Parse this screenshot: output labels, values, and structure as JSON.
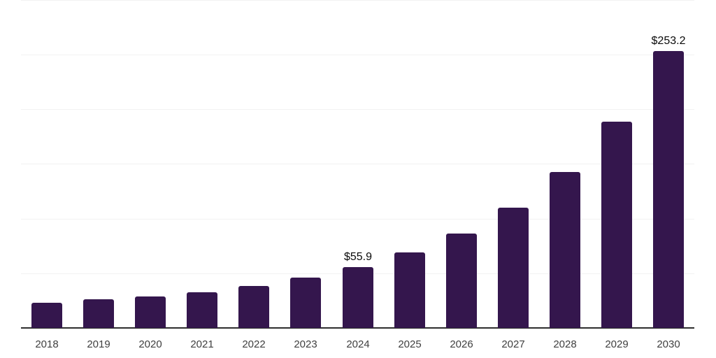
{
  "chart_data": {
    "type": "bar",
    "title": "",
    "xlabel": "",
    "ylabel": "",
    "categories": [
      "2018",
      "2019",
      "2020",
      "2021",
      "2022",
      "2023",
      "2024",
      "2025",
      "2026",
      "2027",
      "2028",
      "2029",
      "2030"
    ],
    "values": [
      22.8,
      26.0,
      28.8,
      32.4,
      38.4,
      45.9,
      55.9,
      69.1,
      86.6,
      109.8,
      142.5,
      188.7,
      253.2
    ],
    "point_labels": [
      "",
      "",
      "",
      "",
      "",
      "",
      "$55.9",
      "",
      "",
      "",
      "",
      "",
      "$253.2"
    ],
    "ylim": [
      0,
      300
    ],
    "gridline_values": [
      50,
      100,
      150,
      200,
      250,
      300
    ],
    "grid_on": true,
    "legend": "none",
    "colors": {
      "bar": "#34164D",
      "gridline": "#f2f2f2",
      "axis_line": "#2e2e2e",
      "tick_label": "#3f3f3f",
      "value_label": "#0a0a0a",
      "background": "#ffffff"
    }
  }
}
